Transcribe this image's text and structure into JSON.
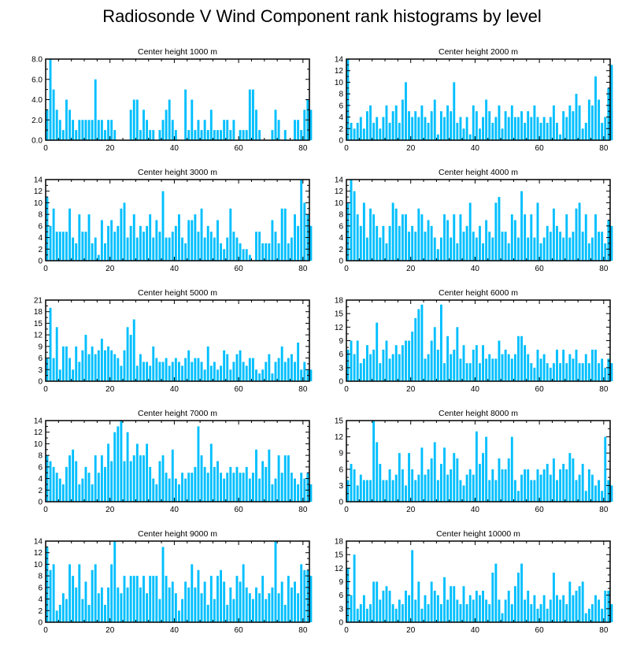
{
  "title": "Radiosonde V Wind Component rank histograms by level",
  "colors": {
    "bar": "#00bfff",
    "axis": "#000000"
  },
  "chart_data": [
    {
      "type": "bar",
      "title": "Center height 1000 m",
      "xlim": [
        0,
        82
      ],
      "ylim": [
        0,
        8
      ],
      "xticks": [
        0,
        20,
        40,
        60,
        80
      ],
      "yticks": [
        0,
        2,
        4,
        6,
        8
      ],
      "ytick_labels": [
        "0.0",
        "2.0",
        "4.0",
        "6.0",
        "8.0"
      ],
      "values": [
        3,
        8,
        5,
        3,
        2,
        1,
        4,
        3,
        2,
        1,
        2,
        2,
        2,
        2,
        2,
        6,
        2,
        2,
        1,
        2,
        2,
        1,
        0,
        0,
        0,
        0,
        3,
        4,
        4,
        1,
        3,
        2,
        1,
        1,
        0,
        1,
        2,
        3,
        4,
        2,
        1,
        0,
        0,
        5,
        1,
        4,
        1,
        2,
        1,
        2,
        1,
        3,
        1,
        1,
        1,
        2,
        2,
        1,
        2,
        0,
        1,
        1,
        1,
        5,
        5,
        3,
        1,
        0,
        0,
        0,
        1,
        3,
        2,
        0,
        1,
        0,
        0,
        2,
        2,
        1,
        3,
        4,
        3
      ]
    },
    {
      "type": "bar",
      "title": "Center height 2000 m",
      "xlim": [
        0,
        82
      ],
      "ylim": [
        0,
        14
      ],
      "xticks": [
        0,
        20,
        40,
        60,
        80
      ],
      "yticks": [
        0,
        2,
        4,
        6,
        8,
        10,
        12,
        14
      ],
      "values": [
        14,
        3,
        2,
        3,
        4,
        2,
        5,
        6,
        3,
        4,
        2,
        4,
        6,
        3,
        5,
        6,
        3,
        7,
        10,
        5,
        4,
        5,
        4,
        6,
        4,
        3,
        5,
        7,
        1,
        5,
        4,
        6,
        5,
        10,
        3,
        4,
        2,
        4,
        1,
        6,
        5,
        2,
        4,
        7,
        5,
        3,
        4,
        6,
        2,
        5,
        4,
        6,
        4,
        4,
        5,
        3,
        5,
        4,
        6,
        4,
        3,
        4,
        3,
        4,
        6,
        3,
        1,
        5,
        4,
        6,
        5,
        8,
        6,
        2,
        3,
        7,
        6,
        11,
        7,
        3,
        4,
        9,
        13
      ]
    },
    {
      "type": "bar",
      "title": "Center height 3000 m",
      "xlim": [
        0,
        82
      ],
      "ylim": [
        0,
        14
      ],
      "xticks": [
        0,
        20,
        40,
        60,
        80
      ],
      "yticks": [
        0,
        2,
        4,
        6,
        8,
        10,
        12,
        14
      ],
      "values": [
        11,
        6,
        9,
        5,
        5,
        5,
        5,
        9,
        4,
        3,
        8,
        5,
        5,
        8,
        3,
        4,
        1,
        7,
        3,
        6,
        7,
        5,
        6,
        9,
        10,
        4,
        6,
        8,
        4,
        6,
        5,
        6,
        8,
        4,
        7,
        5,
        12,
        4,
        4,
        5,
        6,
        8,
        4,
        3,
        7,
        7,
        8,
        5,
        9,
        4,
        6,
        5,
        4,
        7,
        3,
        2,
        4,
        9,
        5,
        4,
        3,
        2,
        2,
        1,
        0,
        5,
        5,
        3,
        3,
        3,
        7,
        5,
        3,
        9,
        9,
        3,
        4,
        8,
        6,
        14,
        10,
        8,
        6
      ]
    },
    {
      "type": "bar",
      "title": "Center height 4000 m",
      "xlim": [
        0,
        82
      ],
      "ylim": [
        0,
        14
      ],
      "xticks": [
        0,
        20,
        40,
        60,
        80
      ],
      "yticks": [
        0,
        2,
        4,
        6,
        8,
        10,
        12,
        14
      ],
      "values": [
        10,
        14,
        12,
        8,
        6,
        10,
        4,
        9,
        8,
        6,
        4,
        6,
        3,
        6,
        10,
        9,
        6,
        8,
        8,
        5,
        6,
        5,
        9,
        8,
        5,
        7,
        6,
        4,
        2,
        4,
        8,
        7,
        4,
        8,
        3,
        8,
        5,
        6,
        10,
        5,
        4,
        6,
        3,
        7,
        5,
        4,
        10,
        11,
        5,
        5,
        3,
        8,
        7,
        4,
        12,
        8,
        4,
        8,
        4,
        10,
        3,
        4,
        6,
        5,
        9,
        6,
        5,
        4,
        8,
        4,
        5,
        9,
        10,
        5,
        8,
        3,
        4,
        8,
        5,
        5,
        3,
        7,
        6
      ]
    },
    {
      "type": "bar",
      "title": "Center height 5000 m",
      "xlim": [
        0,
        82
      ],
      "ylim": [
        0,
        21
      ],
      "xticks": [
        0,
        20,
        40,
        60,
        80
      ],
      "yticks": [
        0,
        3,
        6,
        9,
        12,
        15,
        18,
        21
      ],
      "values": [
        6,
        19,
        6,
        14,
        3,
        9,
        9,
        6,
        3,
        9,
        5,
        8,
        12,
        7,
        9,
        7,
        8,
        11,
        8,
        9,
        8,
        7,
        6,
        4,
        8,
        14,
        12,
        16,
        4,
        7,
        5,
        5,
        4,
        9,
        6,
        5,
        5,
        6,
        4,
        5,
        6,
        5,
        4,
        6,
        8,
        5,
        6,
        6,
        5,
        3,
        9,
        4,
        5,
        3,
        4,
        8,
        7,
        3,
        5,
        7,
        8,
        5,
        4,
        6,
        6,
        3,
        2,
        3,
        5,
        7,
        2,
        5,
        6,
        9,
        5,
        6,
        7,
        5,
        10,
        3,
        5,
        3,
        3
      ]
    },
    {
      "type": "bar",
      "title": "Center height 6000 m",
      "xlim": [
        0,
        82
      ],
      "ylim": [
        0,
        18
      ],
      "xticks": [
        0,
        20,
        40,
        60,
        80
      ],
      "yticks": [
        0,
        3,
        6,
        9,
        12,
        15,
        18
      ],
      "values": [
        7,
        9,
        6,
        9,
        4,
        5,
        8,
        6,
        7,
        13,
        4,
        7,
        9,
        5,
        6,
        8,
        6,
        8,
        9,
        9,
        11,
        14,
        16,
        17,
        5,
        6,
        9,
        12,
        7,
        17,
        4,
        10,
        6,
        7,
        12,
        5,
        8,
        4,
        4,
        7,
        8,
        4,
        8,
        5,
        6,
        5,
        5,
        9,
        6,
        7,
        6,
        5,
        6,
        10,
        10,
        8,
        6,
        4,
        3,
        7,
        5,
        6,
        4,
        3,
        4,
        7,
        4,
        7,
        4,
        6,
        5,
        7,
        4,
        4,
        6,
        4,
        7,
        7,
        4,
        5,
        3,
        5,
        4
      ]
    },
    {
      "type": "bar",
      "title": "Center height 7000 m",
      "xlim": [
        0,
        82
      ],
      "ylim": [
        0,
        14
      ],
      "xticks": [
        0,
        20,
        40,
        60,
        80
      ],
      "yticks": [
        0,
        2,
        4,
        6,
        8,
        10,
        12,
        14
      ],
      "values": [
        8,
        7,
        6,
        5,
        4,
        3,
        6,
        8,
        9,
        7,
        3,
        4,
        6,
        5,
        3,
        8,
        5,
        8,
        6,
        10,
        7,
        12,
        13,
        14,
        7,
        12,
        7,
        8,
        10,
        8,
        8,
        10,
        6,
        4,
        3,
        7,
        8,
        5,
        4,
        9,
        4,
        3,
        5,
        4,
        5,
        5,
        6,
        13,
        8,
        6,
        5,
        10,
        6,
        7,
        5,
        4,
        5,
        6,
        5,
        6,
        5,
        5,
        6,
        4,
        5,
        9,
        4,
        7,
        6,
        9,
        3,
        4,
        8,
        5,
        8,
        8,
        5,
        4,
        3,
        5,
        4,
        5,
        3
      ]
    },
    {
      "type": "bar",
      "title": "Center height 8000 m",
      "xlim": [
        0,
        82
      ],
      "ylim": [
        0,
        15
      ],
      "xticks": [
        0,
        20,
        40,
        60,
        80
      ],
      "yticks": [
        0,
        3,
        6,
        9,
        12,
        15
      ],
      "values": [
        4,
        7,
        6,
        3,
        5,
        4,
        4,
        4,
        15,
        11,
        7,
        4,
        4,
        6,
        4,
        5,
        9,
        6,
        3,
        9,
        6,
        4,
        5,
        10,
        5,
        6,
        8,
        11,
        4,
        7,
        10,
        5,
        6,
        9,
        8,
        4,
        3,
        5,
        6,
        5,
        13,
        7,
        9,
        12,
        4,
        6,
        4,
        8,
        6,
        6,
        8,
        12,
        4,
        2,
        5,
        6,
        6,
        4,
        4,
        6,
        5,
        6,
        7,
        5,
        8,
        4,
        6,
        7,
        6,
        9,
        8,
        4,
        5,
        7,
        2,
        6,
        5,
        3,
        4,
        2,
        12,
        4,
        3
      ]
    },
    {
      "type": "bar",
      "title": "Center height 9000 m",
      "xlim": [
        0,
        82
      ],
      "ylim": [
        0,
        14
      ],
      "xticks": [
        0,
        20,
        40,
        60,
        80
      ],
      "yticks": [
        0,
        2,
        4,
        6,
        8,
        10,
        12,
        14
      ],
      "values": [
        13,
        9,
        10,
        2,
        3,
        5,
        4,
        10,
        8,
        6,
        10,
        4,
        7,
        3,
        9,
        10,
        5,
        6,
        3,
        6,
        10,
        14,
        6,
        5,
        8,
        6,
        8,
        8,
        8,
        6,
        8,
        5,
        8,
        8,
        8,
        4,
        13,
        8,
        6,
        7,
        5,
        2,
        4,
        7,
        6,
        10,
        6,
        9,
        5,
        7,
        3,
        8,
        4,
        8,
        9,
        7,
        3,
        6,
        4,
        8,
        7,
        10,
        6,
        5,
        4,
        6,
        5,
        8,
        4,
        5,
        6,
        14,
        5,
        7,
        3,
        8,
        6,
        7,
        5,
        10,
        9,
        9,
        8
      ]
    },
    {
      "type": "bar",
      "title": "Center height 10000 m",
      "xlim": [
        0,
        82
      ],
      "ylim": [
        0,
        18
      ],
      "xticks": [
        0,
        20,
        40,
        60,
        80
      ],
      "yticks": [
        0,
        3,
        6,
        9,
        12,
        15,
        18
      ],
      "values": [
        12,
        6,
        15,
        3,
        4,
        6,
        3,
        4,
        9,
        9,
        5,
        7,
        8,
        7,
        4,
        3,
        5,
        4,
        7,
        6,
        16,
        5,
        9,
        3,
        6,
        4,
        9,
        7,
        6,
        4,
        10,
        5,
        8,
        8,
        5,
        4,
        8,
        4,
        6,
        5,
        7,
        6,
        7,
        5,
        4,
        11,
        13,
        5,
        2,
        5,
        7,
        4,
        8,
        11,
        13,
        5,
        7,
        4,
        6,
        3,
        4,
        6,
        3,
        5,
        11,
        6,
        5,
        6,
        4,
        9,
        6,
        7,
        8,
        9,
        2,
        3,
        4,
        6,
        5,
        3,
        7,
        7,
        4
      ]
    }
  ]
}
